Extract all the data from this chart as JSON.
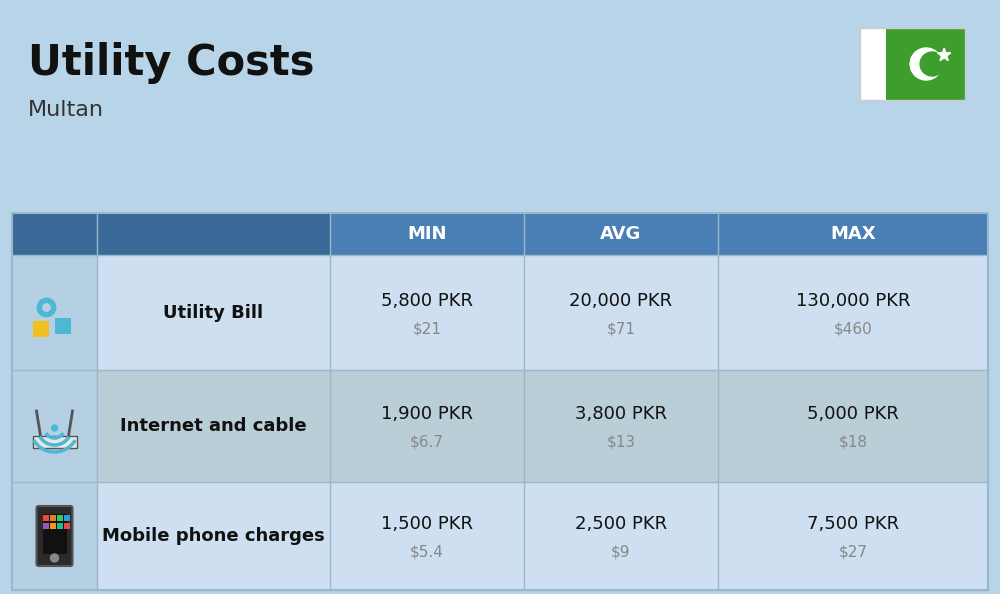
{
  "title": "Utility Costs",
  "subtitle": "Multan",
  "background_color": "#b8d4e8",
  "header_color": "#4a7fb5",
  "header_text_color": "#ffffff",
  "row_color_odd": "#cddff0",
  "row_color_even": "#baced8",
  "icon_col_bg": "#b8d0e4",
  "separator_color": "#9ab8cc",
  "col_headers": [
    "MIN",
    "AVG",
    "MAX"
  ],
  "rows": [
    {
      "label": "Utility Bill",
      "min_pkr": "5,800 PKR",
      "min_usd": "$21",
      "avg_pkr": "20,000 PKR",
      "avg_usd": "$71",
      "max_pkr": "130,000 PKR",
      "max_usd": "$460"
    },
    {
      "label": "Internet and cable",
      "min_pkr": "1,900 PKR",
      "min_usd": "$6.7",
      "avg_pkr": "3,800 PKR",
      "avg_usd": "$13",
      "max_pkr": "5,000 PKR",
      "max_usd": "$18"
    },
    {
      "label": "Mobile phone charges",
      "min_pkr": "1,500 PKR",
      "min_usd": "$5.4",
      "avg_pkr": "2,500 PKR",
      "avg_usd": "$9",
      "max_pkr": "7,500 PKR",
      "max_usd": "$27"
    }
  ],
  "flag_green": "#3d9e2e",
  "flag_white": "#ffffff",
  "title_fontsize": 30,
  "subtitle_fontsize": 16,
  "header_fontsize": 13,
  "label_fontsize": 13,
  "value_fontsize": 13,
  "usd_fontsize": 11,
  "usd_color": "#888888",
  "label_color": "#111111",
  "value_color": "#111111"
}
